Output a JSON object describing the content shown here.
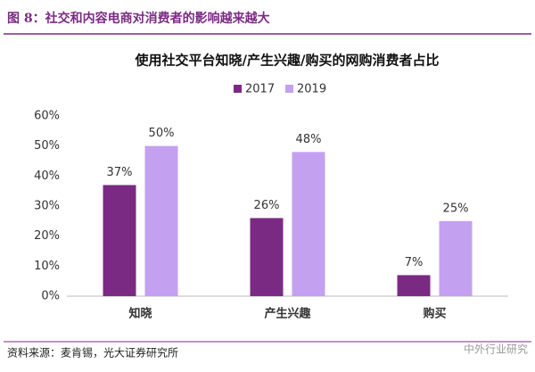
{
  "header": "图 8：社交和内容电商对消费者的影响越来越大",
  "chart_data": {
    "type": "bar",
    "title": "使用社交平台知晓/产生兴趣/购买的网购消费者占比",
    "categories": [
      "知晓",
      "产生兴趣",
      "购买"
    ],
    "series": [
      {
        "name": "2017",
        "color": "#7b2a83",
        "values": [
          37,
          26,
          7
        ],
        "value_labels": [
          "37%",
          "26%",
          "7%"
        ]
      },
      {
        "name": "2019",
        "color": "#c4a0f0",
        "values": [
          50,
          48,
          25
        ],
        "value_labels": [
          "50%",
          "48%",
          "25%"
        ]
      }
    ],
    "ylim": [
      0,
      60
    ],
    "yticks": [
      {
        "value": 0,
        "label": "0%"
      },
      {
        "value": 10,
        "label": "10%"
      },
      {
        "value": 20,
        "label": "20%"
      },
      {
        "value": 30,
        "label": "30%"
      },
      {
        "value": 40,
        "label": "40%"
      },
      {
        "value": 50,
        "label": "50%"
      },
      {
        "value": 60,
        "label": "60%"
      }
    ],
    "grid": false
  },
  "footer": {
    "source": "资料来源：麦肯锡，光大证券研究所",
    "watermark": "中外行业研究"
  }
}
